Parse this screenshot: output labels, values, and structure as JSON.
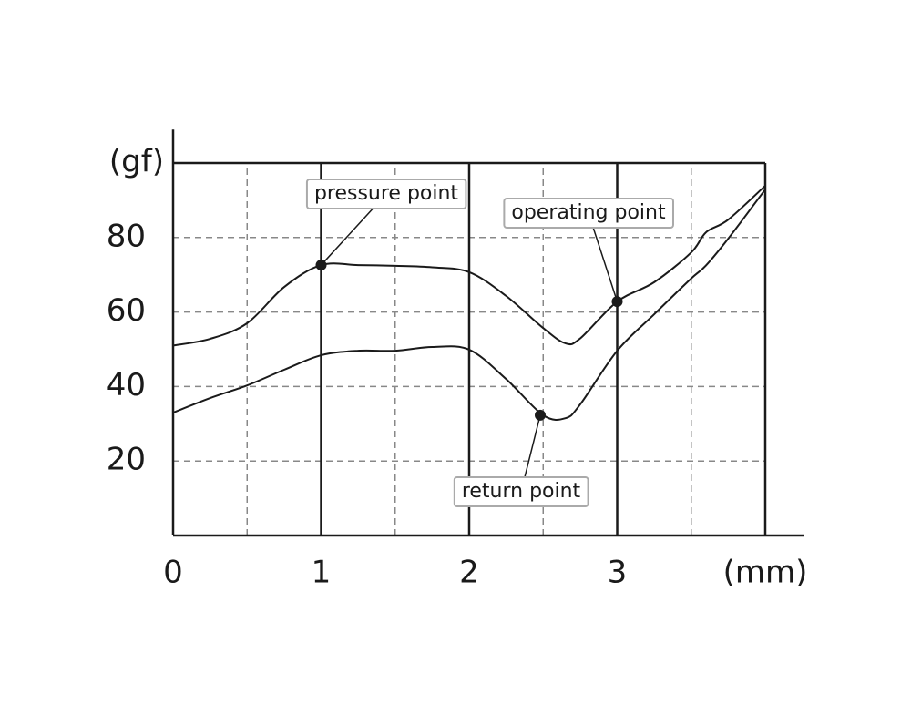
{
  "chart_data": {
    "type": "line",
    "x": [
      0,
      0.25,
      0.5,
      0.75,
      1,
      1.25,
      1.5,
      1.75,
      2,
      2.25,
      2.5,
      2.65,
      2.75,
      3,
      3.25,
      3.5,
      3.6,
      3.75,
      4
    ],
    "series": [
      {
        "color": "#1a1a1a",
        "values": [
          51,
          52.8,
          57,
          66.7,
          72.6,
          72.6,
          72.4,
          72,
          70.7,
          64.3,
          55.7,
          51.6,
          52.9,
          62.8,
          68,
          76,
          81.4,
          84.8,
          93.9
        ]
      },
      {
        "color": "#1a1a1a",
        "values": [
          33,
          36.9,
          40.3,
          44.5,
          48.4,
          49.6,
          49.6,
          50.6,
          49.9,
          42,
          32.3,
          31.5,
          35.2,
          49.6,
          59.4,
          69,
          72.5,
          79.7,
          92.9
        ]
      }
    ],
    "xlim": [
      0,
      4.26
    ],
    "ylim": [
      0,
      109
    ],
    "xticks": [
      0,
      1,
      2,
      3,
      {
        "value": 4,
        "label": "(mm)"
      }
    ],
    "yticks": [
      20,
      40,
      60,
      80,
      {
        "value": 100,
        "label": "(gf)"
      }
    ],
    "xminor": [
      0.5,
      1.5,
      2.5,
      3.5
    ],
    "grid": true,
    "annotations": [
      {
        "text": "pressure point",
        "x": 1,
        "y": 72.6
      },
      {
        "text": "operating point",
        "x": 3,
        "y": 62.8
      },
      {
        "text": "return point",
        "x": 2.48,
        "y": 32.3
      }
    ]
  }
}
